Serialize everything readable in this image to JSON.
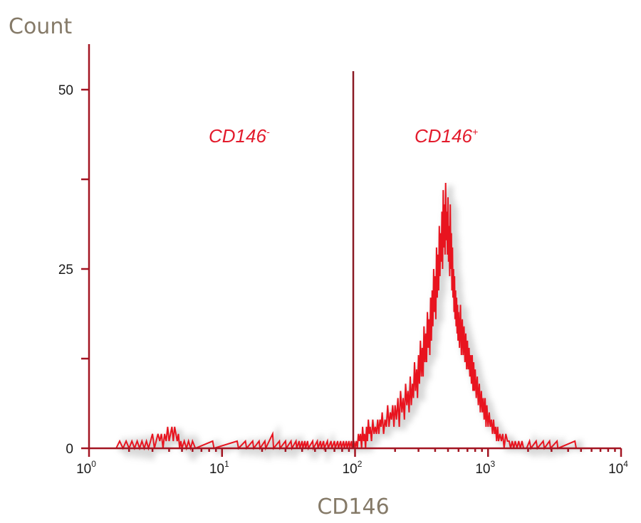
{
  "chart_data": {
    "type": "histogram",
    "ylabel": "Count",
    "xlabel": "CD146",
    "x_scale": "log",
    "xlim": [
      1,
      10000
    ],
    "ylim": [
      0,
      60
    ],
    "y_ticks": [
      {
        "value": 0,
        "label": "0"
      },
      {
        "value": 12.5,
        "label": ""
      },
      {
        "value": 25,
        "label": "25"
      },
      {
        "value": 37.5,
        "label": ""
      },
      {
        "value": 50,
        "label": "50"
      }
    ],
    "x_ticks": [
      {
        "value": 1,
        "base": "10",
        "exp": "0"
      },
      {
        "value": 10,
        "base": "10",
        "exp": "1"
      },
      {
        "value": 100,
        "base": "10",
        "exp": "2"
      },
      {
        "value": 1000,
        "base": "10",
        "exp": "3"
      },
      {
        "value": 10000,
        "base": "10",
        "exp": "4"
      }
    ],
    "gate": {
      "x": 100,
      "negative_label": {
        "text": "CD146",
        "sup": "-"
      },
      "positive_label": {
        "text": "CD146",
        "sup": "+"
      }
    },
    "series": [
      {
        "color": "#e8141f",
        "points": [
          [
            1.6,
            0
          ],
          [
            1.7,
            1
          ],
          [
            1.8,
            0
          ],
          [
            1.9,
            1
          ],
          [
            2.0,
            0
          ],
          [
            2.1,
            1
          ],
          [
            2.2,
            0
          ],
          [
            2.3,
            1
          ],
          [
            2.4,
            0
          ],
          [
            2.5,
            1
          ],
          [
            2.6,
            0
          ],
          [
            2.7,
            1
          ],
          [
            2.8,
            0
          ],
          [
            2.9,
            1
          ],
          [
            3.0,
            2
          ],
          [
            3.1,
            0
          ],
          [
            3.2,
            1
          ],
          [
            3.3,
            2
          ],
          [
            3.4,
            1
          ],
          [
            3.5,
            2
          ],
          [
            3.6,
            0
          ],
          [
            3.7,
            2
          ],
          [
            3.8,
            1
          ],
          [
            3.9,
            3
          ],
          [
            4.0,
            1
          ],
          [
            4.1,
            2
          ],
          [
            4.2,
            3
          ],
          [
            4.3,
            1
          ],
          [
            4.4,
            3
          ],
          [
            4.5,
            2
          ],
          [
            4.6,
            1
          ],
          [
            4.7,
            2
          ],
          [
            4.8,
            0
          ],
          [
            4.9,
            1
          ],
          [
            5.0,
            0
          ],
          [
            5.2,
            1
          ],
          [
            5.4,
            0
          ],
          [
            5.6,
            1
          ],
          [
            5.8,
            0
          ],
          [
            6.0,
            1
          ],
          [
            6.3,
            0
          ],
          [
            8.5,
            1
          ],
          [
            8.7,
            0
          ],
          [
            13,
            1
          ],
          [
            13.3,
            0
          ],
          [
            15,
            1
          ],
          [
            15.3,
            0
          ],
          [
            17,
            1
          ],
          [
            17.3,
            0
          ],
          [
            19,
            1
          ],
          [
            19.3,
            0
          ],
          [
            21,
            1
          ],
          [
            21.3,
            0
          ],
          [
            24,
            2
          ],
          [
            24.4,
            0
          ],
          [
            27,
            1
          ],
          [
            27.3,
            0
          ],
          [
            30,
            1
          ],
          [
            30.4,
            0
          ],
          [
            33,
            1
          ],
          [
            33.5,
            0
          ],
          [
            36,
            1
          ],
          [
            36.4,
            0
          ],
          [
            38,
            1
          ],
          [
            38.5,
            0
          ],
          [
            40,
            1
          ],
          [
            40.5,
            0
          ],
          [
            42,
            1
          ],
          [
            42.5,
            0
          ],
          [
            44,
            1
          ],
          [
            44.6,
            0
          ],
          [
            48,
            1
          ],
          [
            48.6,
            0
          ],
          [
            52,
            1
          ],
          [
            52.7,
            0
          ],
          [
            55,
            1
          ],
          [
            55.7,
            0
          ],
          [
            58,
            1
          ],
          [
            58.8,
            0
          ],
          [
            62,
            1
          ],
          [
            62.8,
            0
          ],
          [
            66,
            1
          ],
          [
            66.9,
            0
          ],
          [
            70,
            1
          ],
          [
            70.9,
            0
          ],
          [
            74,
            1
          ],
          [
            75,
            0
          ],
          [
            78,
            1
          ],
          [
            79,
            0
          ],
          [
            82,
            1
          ],
          [
            83,
            0
          ],
          [
            86,
            1
          ],
          [
            87,
            0
          ],
          [
            90,
            1
          ],
          [
            91,
            0
          ],
          [
            94,
            1
          ],
          [
            95,
            0
          ],
          [
            98,
            1
          ],
          [
            100,
            0
          ],
          [
            102,
            1
          ],
          [
            104,
            0
          ],
          [
            106,
            2
          ],
          [
            108,
            1
          ],
          [
            110,
            2
          ],
          [
            112,
            0
          ],
          [
            114,
            3
          ],
          [
            116,
            1
          ],
          [
            118,
            2
          ],
          [
            120,
            0
          ],
          [
            122,
            3
          ],
          [
            124,
            1
          ],
          [
            126,
            4
          ],
          [
            128,
            2
          ],
          [
            130,
            3
          ],
          [
            133,
            1
          ],
          [
            136,
            4
          ],
          [
            139,
            2
          ],
          [
            142,
            3
          ],
          [
            145,
            2
          ],
          [
            148,
            4
          ],
          [
            151,
            2
          ],
          [
            154,
            4
          ],
          [
            157,
            3
          ],
          [
            160,
            5
          ],
          [
            164,
            2
          ],
          [
            168,
            4
          ],
          [
            172,
            3
          ],
          [
            176,
            6
          ],
          [
            180,
            3
          ],
          [
            184,
            5
          ],
          [
            188,
            4
          ],
          [
            192,
            6
          ],
          [
            196,
            3
          ],
          [
            200,
            6
          ],
          [
            205,
            4
          ],
          [
            210,
            7
          ],
          [
            215,
            3
          ],
          [
            220,
            8
          ],
          [
            225,
            5
          ],
          [
            230,
            7
          ],
          [
            235,
            4
          ],
          [
            240,
            9
          ],
          [
            245,
            6
          ],
          [
            250,
            8
          ],
          [
            255,
            5
          ],
          [
            260,
            10
          ],
          [
            265,
            6
          ],
          [
            270,
            9
          ],
          [
            275,
            7
          ],
          [
            280,
            12
          ],
          [
            285,
            8
          ],
          [
            290,
            11
          ],
          [
            295,
            7
          ],
          [
            300,
            13
          ],
          [
            305,
            9
          ],
          [
            310,
            15
          ],
          [
            315,
            10
          ],
          [
            320,
            14
          ],
          [
            325,
            10
          ],
          [
            330,
            17
          ],
          [
            335,
            12
          ],
          [
            340,
            16
          ],
          [
            345,
            12
          ],
          [
            350,
            19
          ],
          [
            355,
            14
          ],
          [
            360,
            18
          ],
          [
            365,
            13
          ],
          [
            370,
            21
          ],
          [
            375,
            15
          ],
          [
            380,
            22
          ],
          [
            385,
            17
          ],
          [
            390,
            25
          ],
          [
            395,
            19
          ],
          [
            400,
            24
          ],
          [
            405,
            18
          ],
          [
            410,
            28
          ],
          [
            415,
            21
          ],
          [
            420,
            27
          ],
          [
            425,
            22
          ],
          [
            430,
            31
          ],
          [
            435,
            24
          ],
          [
            440,
            30
          ],
          [
            445,
            26
          ],
          [
            450,
            33
          ],
          [
            455,
            25
          ],
          [
            460,
            36
          ],
          [
            465,
            28
          ],
          [
            470,
            34
          ],
          [
            475,
            27
          ],
          [
            480,
            37
          ],
          [
            485,
            29
          ],
          [
            490,
            33
          ],
          [
            495,
            27
          ],
          [
            500,
            35
          ],
          [
            505,
            26
          ],
          [
            510,
            31
          ],
          [
            515,
            24
          ],
          [
            520,
            34
          ],
          [
            525,
            25
          ],
          [
            530,
            30
          ],
          [
            535,
            22
          ],
          [
            540,
            28
          ],
          [
            545,
            21
          ],
          [
            550,
            25
          ],
          [
            555,
            19
          ],
          [
            560,
            24
          ],
          [
            565,
            18
          ],
          [
            570,
            22
          ],
          [
            575,
            17
          ],
          [
            580,
            21
          ],
          [
            585,
            16
          ],
          [
            590,
            20
          ],
          [
            595,
            15
          ],
          [
            600,
            19
          ],
          [
            610,
            14
          ],
          [
            620,
            20
          ],
          [
            630,
            13
          ],
          [
            640,
            18
          ],
          [
            650,
            13
          ],
          [
            660,
            17
          ],
          [
            670,
            12
          ],
          [
            680,
            16
          ],
          [
            690,
            11
          ],
          [
            700,
            15
          ],
          [
            710,
            11
          ],
          [
            720,
            14
          ],
          [
            730,
            10
          ],
          [
            740,
            13
          ],
          [
            750,
            9
          ],
          [
            760,
            13
          ],
          [
            770,
            8
          ],
          [
            780,
            12
          ],
          [
            790,
            8
          ],
          [
            800,
            11
          ],
          [
            815,
            7
          ],
          [
            830,
            10
          ],
          [
            845,
            6
          ],
          [
            860,
            9
          ],
          [
            875,
            5
          ],
          [
            890,
            8
          ],
          [
            905,
            5
          ],
          [
            920,
            7
          ],
          [
            935,
            4
          ],
          [
            950,
            7
          ],
          [
            965,
            3
          ],
          [
            980,
            6
          ],
          [
            1000,
            3
          ],
          [
            1020,
            5
          ],
          [
            1040,
            3
          ],
          [
            1060,
            4
          ],
          [
            1080,
            2
          ],
          [
            1100,
            4
          ],
          [
            1120,
            2
          ],
          [
            1140,
            3
          ],
          [
            1160,
            1
          ],
          [
            1180,
            3
          ],
          [
            1200,
            1
          ],
          [
            1230,
            2
          ],
          [
            1260,
            1
          ],
          [
            1290,
            2
          ],
          [
            1320,
            0
          ],
          [
            1360,
            2
          ],
          [
            1400,
            1
          ],
          [
            1440,
            1
          ],
          [
            1480,
            0
          ],
          [
            1520,
            1
          ],
          [
            1560,
            0
          ],
          [
            1600,
            1
          ],
          [
            1650,
            0
          ],
          [
            1700,
            1
          ],
          [
            1750,
            0
          ],
          [
            1800,
            1
          ],
          [
            1850,
            0
          ],
          [
            1950,
            0
          ],
          [
            2050,
            1
          ],
          [
            2100,
            0
          ],
          [
            2300,
            1
          ],
          [
            2350,
            0
          ],
          [
            2600,
            1
          ],
          [
            2650,
            0
          ],
          [
            2900,
            1
          ],
          [
            2950,
            0
          ],
          [
            3300,
            1
          ],
          [
            3350,
            0
          ],
          [
            4500,
            1
          ],
          [
            4600,
            0
          ]
        ]
      }
    ]
  }
}
